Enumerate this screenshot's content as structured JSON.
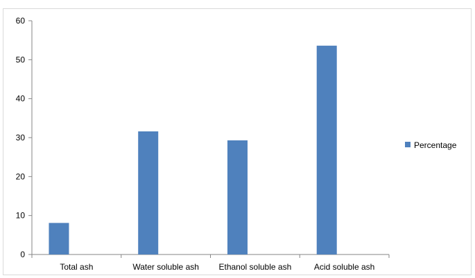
{
  "chart_data": {
    "type": "bar",
    "categories": [
      "Total ash",
      "Water soluble ash",
      "Ethanol soluble ash",
      "Acid soluble ash"
    ],
    "series": [
      {
        "name": "Percentage",
        "values": [
          8.1,
          31.6,
          29.3,
          53.6
        ],
        "color": "#4f81bd"
      }
    ],
    "title": "",
    "xlabel": "",
    "ylabel": "",
    "ylim": [
      0,
      60
    ],
    "yticks": [
      0,
      10,
      20,
      30,
      40,
      50,
      60
    ],
    "grid": false,
    "legend_position": "right"
  }
}
